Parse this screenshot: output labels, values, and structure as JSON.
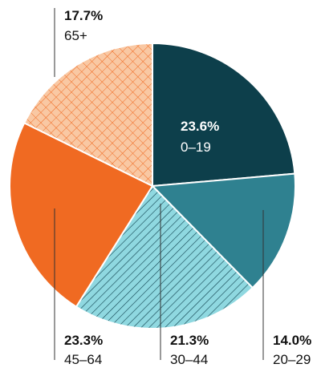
{
  "chart_data": {
    "type": "pie",
    "title": "",
    "slices": [
      {
        "label": "0–19",
        "value": 23.6,
        "value_label": "23.6%",
        "color": "#0d3f4b",
        "pattern": "solid"
      },
      {
        "label": "20–29",
        "value": 14.0,
        "value_label": "14.0%",
        "color": "#2f8190",
        "pattern": "solid"
      },
      {
        "label": "30–44",
        "value": 21.3,
        "value_label": "21.3%",
        "color": "#8fd8e0",
        "pattern": "diagonal-hatch"
      },
      {
        "label": "45–64",
        "value": 23.3,
        "value_label": "23.3%",
        "color": "#f06a22",
        "pattern": "solid"
      },
      {
        "label": "65+",
        "value": 17.7,
        "value_label": "17.7%",
        "color": "#f9c8a3",
        "pattern": "crosshatch"
      }
    ]
  }
}
